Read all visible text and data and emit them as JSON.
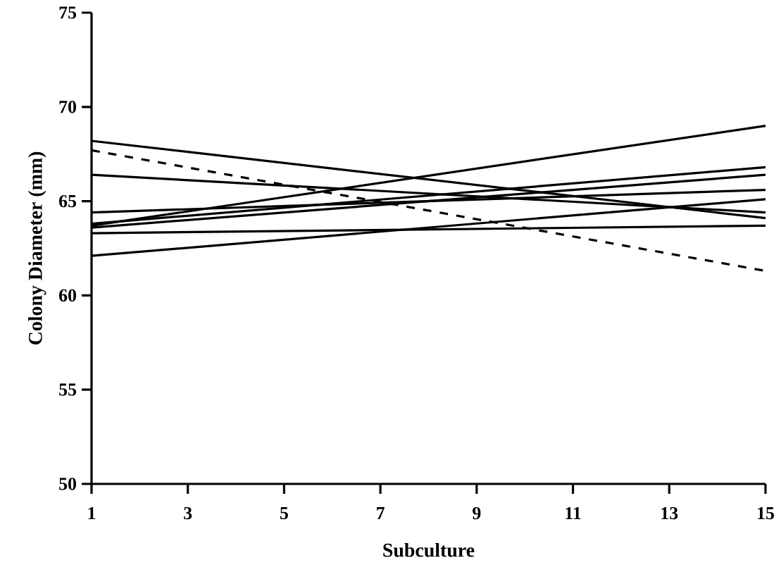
{
  "chart_data": {
    "type": "line",
    "xlabel": "Subculture",
    "ylabel": "Colony Diameter (mm)",
    "x": [
      1,
      15
    ],
    "line_style": "solid",
    "series": [
      {
        "color": "#000000",
        "values": [
          68.2,
          64.1
        ]
      },
      {
        "color": "#000000",
        "values": [
          66.4,
          64.4
        ]
      },
      {
        "color": "#000000",
        "values": [
          64.4,
          65.6
        ]
      },
      {
        "color": "#000000",
        "values": [
          63.7,
          69.0
        ]
      },
      {
        "color": "#000000",
        "values": [
          63.8,
          66.8
        ]
      },
      {
        "color": "#000000",
        "values": [
          63.6,
          66.4
        ]
      },
      {
        "color": "#000000",
        "values": [
          63.3,
          63.7
        ]
      },
      {
        "color": "#000000",
        "values": [
          62.1,
          65.1
        ]
      },
      {
        "color": "#000000",
        "values": [
          67.7,
          61.3
        ],
        "line_style": "dashed"
      }
    ],
    "xlim": [
      1,
      15
    ],
    "ylim": [
      50,
      75
    ],
    "xticks": [
      1,
      3,
      5,
      7,
      9,
      11,
      13,
      15
    ],
    "yticks": [
      50,
      55,
      60,
      65,
      70,
      75
    ]
  }
}
